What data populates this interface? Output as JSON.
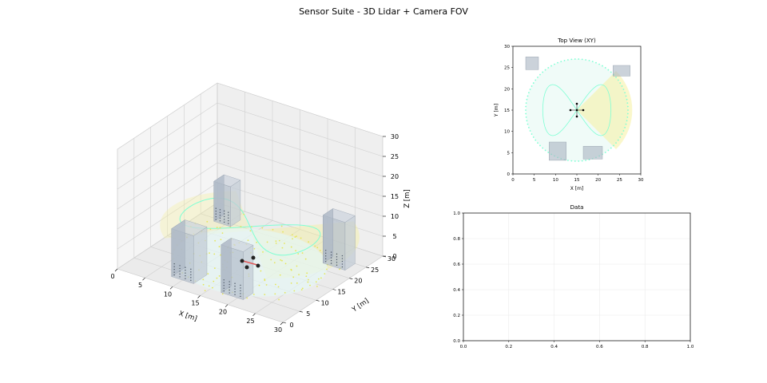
{
  "figure": {
    "title": "Sensor Suite - 3D Lidar + Camera FOV",
    "colors": {
      "obstacle": "#a9b4c2",
      "lidar_ring": "#7fffd4",
      "camera_fov": "#f5f0a0",
      "lidar_points": "#e6e65a",
      "robot_arm": "#e05a5a"
    }
  },
  "chart_data": [
    {
      "type": "scatter",
      "panel": "3d",
      "title": "",
      "xlabel": "X [m]",
      "ylabel": "Y [m]",
      "zlabel": "Z [m]",
      "xlim": [
        0,
        30
      ],
      "ylim": [
        0,
        30
      ],
      "zlim": [
        0,
        30
      ],
      "x_ticks": [
        "0",
        "5",
        "10",
        "15",
        "20",
        "25",
        "30"
      ],
      "y_ticks": [
        "0",
        "5",
        "10",
        "15",
        "20",
        "25",
        "30"
      ],
      "z_ticks": [
        "0",
        "5",
        "10",
        "15",
        "20",
        "25",
        "30"
      ],
      "grid": true,
      "sensor_position": [
        15,
        15,
        0
      ],
      "lidar_radius": 12,
      "camera_fov_deg": 90,
      "camera_heading_deg": 0,
      "obstacles": [
        {
          "x": [
            3,
            6
          ],
          "y": [
            24,
            27
          ],
          "z": [
            0,
            10
          ]
        },
        {
          "x": [
            24,
            28
          ],
          "y": [
            22,
            25
          ],
          "z": [
            0,
            12
          ]
        },
        {
          "x": [
            8,
            12
          ],
          "y": [
            3,
            7
          ],
          "z": [
            0,
            12
          ]
        },
        {
          "x": [
            17,
            21
          ],
          "y": [
            3,
            6
          ],
          "z": [
            0,
            12
          ]
        }
      ]
    },
    {
      "type": "scatter",
      "panel": "top",
      "title": "Top View (XY)",
      "xlabel": "X [m]",
      "ylabel": "Y [m]",
      "xlim": [
        0,
        30
      ],
      "ylim": [
        0,
        30
      ],
      "x_ticks": [
        "0",
        "5",
        "10",
        "15",
        "20",
        "25",
        "30"
      ],
      "y_ticks": [
        "0",
        "5",
        "10",
        "15",
        "20",
        "25",
        "30"
      ],
      "lidar_radius": 12,
      "sensor_position": [
        15,
        15
      ],
      "obstacles": [
        {
          "x": [
            3,
            6
          ],
          "y": [
            24.5,
            27.5
          ]
        },
        {
          "x": [
            23.5,
            27.5
          ],
          "y": [
            23,
            25.5
          ]
        },
        {
          "x": [
            8.5,
            12.5
          ],
          "y": [
            3.2,
            7.5
          ]
        },
        {
          "x": [
            16.5,
            21
          ],
          "y": [
            3.5,
            6.5
          ]
        }
      ]
    },
    {
      "type": "line",
      "panel": "data",
      "title": "Data",
      "xlabel": "",
      "ylabel": "",
      "xlim": [
        0,
        1
      ],
      "ylim": [
        0,
        1
      ],
      "x_ticks": [
        "0.0",
        "0.2",
        "0.4",
        "0.6",
        "0.8",
        "1.0"
      ],
      "y_ticks": [
        "0.0",
        "0.2",
        "0.4",
        "0.6",
        "0.8",
        "1.0"
      ],
      "grid": true,
      "series": []
    }
  ]
}
